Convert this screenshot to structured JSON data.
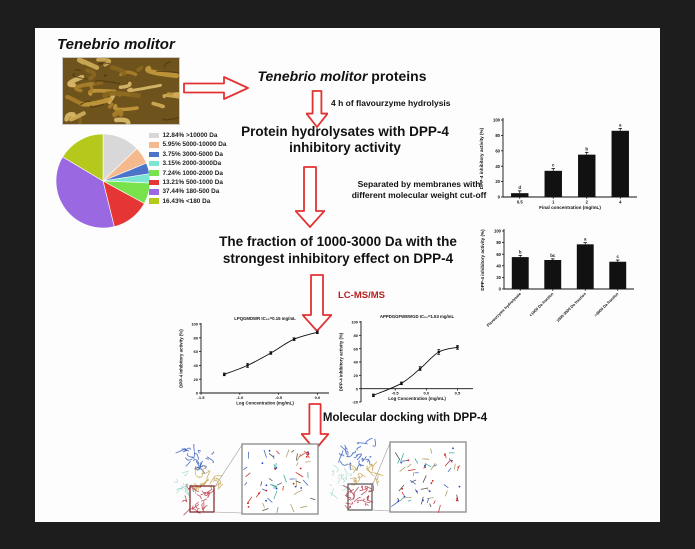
{
  "colors": {
    "background": "#1d1d1d",
    "panel": "#fdfdfd",
    "arrow_red": "#e23333",
    "lcms_text": "#b5221f",
    "bar_fill": "#111111"
  },
  "header": {
    "specimen_label": "Tenebrio molitor"
  },
  "flow": {
    "step1_italic": "Tenebrio molitor",
    "step1_rest": " proteins",
    "arrow1_label": "4 h of flavourzyme hydrolysis",
    "step2_lines": [
      "Protein hydrolysates with DPP-4",
      "inhibitory activity"
    ],
    "arrow2_label_lines": [
      "Separated by membranes with",
      "different molecular weight cut-off"
    ],
    "step3_lines": [
      "The fraction of 1000-3000 Da with  the",
      "strongest inhibitory effect on DPP-4"
    ],
    "arrow3_label": "LC-MS/MS",
    "step4": "Molecular docking with DPP-4"
  },
  "chart_data": [
    {
      "id": "molecular-weight-pie",
      "type": "pie",
      "title": "",
      "labels": [
        ">10000 Da",
        "5000-10000 Da",
        "3000-5000 Da",
        "2000-3000Da",
        "1000-2000 Da",
        "500-1000 Da",
        "180-500 Da",
        "<180 Da"
      ],
      "values": [
        12.84,
        5.95,
        3.75,
        3.15,
        7.24,
        13.21,
        37.44,
        16.43
      ],
      "colors": [
        "#d8d8d8",
        "#f5b98e",
        "#4a73c9",
        "#7ce6d3",
        "#77e24b",
        "#e63535",
        "#9a68e0",
        "#b4c91c"
      ],
      "legend_position": "right"
    },
    {
      "id": "concentration-bar",
      "type": "bar",
      "categories": [
        "0.5",
        "1",
        "2",
        "4"
      ],
      "values": [
        5,
        34,
        55,
        86
      ],
      "errors": [
        3,
        3,
        3,
        3
      ],
      "sig_letters": [
        "d",
        "c",
        "b",
        "a"
      ],
      "xlabel": "Final concentration (mg/mL)",
      "ylabel": "DPP-4 inhibitory activity (%)",
      "ylim": [
        0,
        100
      ],
      "yticks": [
        0,
        20,
        40,
        60,
        80,
        100
      ],
      "bar_color": "#111111"
    },
    {
      "id": "fraction-bar",
      "type": "bar",
      "categories": [
        "Flavourzyme hydrolysate",
        "<1000 Da fraction",
        "1000-3000 Da fraction",
        ">3000 Da fraction"
      ],
      "values": [
        55,
        50,
        77,
        47
      ],
      "errors": [
        3,
        2,
        3,
        3
      ],
      "sig_letters": [
        "b",
        "bc",
        "a",
        "c"
      ],
      "xlabel": "",
      "ylabel": "DPP-4 inhibitory activity (%)",
      "ylim": [
        0,
        100
      ],
      "yticks": [
        0,
        20,
        40,
        60,
        80,
        100
      ],
      "rotated_labels": true,
      "bar_color": "#111111"
    },
    {
      "id": "peptide1-line",
      "type": "line",
      "title": "LPQGMDWR  IC₅₀=0.15 mg/mL",
      "x": [
        -1.2,
        -0.9,
        -0.6,
        -0.3,
        0.0
      ],
      "y": [
        27,
        40,
        58,
        78,
        88
      ],
      "errors": [
        2,
        3,
        2,
        2,
        2
      ],
      "xlabel": "Log Concentration (mg/mL)",
      "ylabel": "DPP-4 inhibitory activity (%)",
      "xlim": [
        -1.5,
        0.15
      ],
      "xticks": [
        -1.5,
        -1.0,
        -0.5,
        0.0
      ],
      "ylim": [
        0,
        100
      ],
      "yticks": [
        0,
        20,
        40,
        60,
        80,
        100
      ]
    },
    {
      "id": "peptide2-line",
      "type": "line",
      "title": "APPDGGFWEWGD  IC₅₀=1.53 mg/mL",
      "x": [
        -0.85,
        -0.4,
        -0.1,
        0.2,
        0.5
      ],
      "y": [
        -10,
        8,
        30,
        55,
        62
      ],
      "errors": [
        2,
        2,
        3,
        4,
        3
      ],
      "xlabel": "Log Concentration (mg/mL)",
      "ylabel": "DPP-4 inhibitory activity (%)",
      "xlim": [
        -1.05,
        0.75
      ],
      "xticks": [
        -0.5,
        0.0,
        0.5
      ],
      "ylim": [
        -20,
        100
      ],
      "yticks": [
        -20,
        0,
        20,
        40,
        60,
        80,
        100
      ]
    }
  ]
}
